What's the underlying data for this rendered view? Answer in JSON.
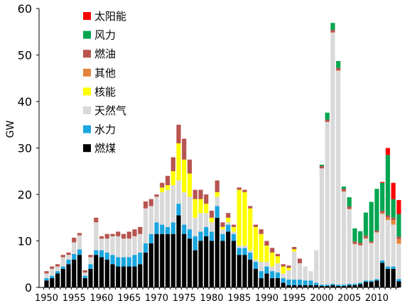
{
  "chart_data": {
    "type": "bar",
    "stacked": true,
    "title": "",
    "xlabel": "",
    "ylabel": "GW",
    "ylim": [
      0,
      60
    ],
    "yticks": [
      0,
      10,
      20,
      30,
      40,
      50,
      60
    ],
    "xticks": [
      1950,
      1955,
      1960,
      1965,
      1970,
      1975,
      1980,
      1985,
      1990,
      1995,
      2000,
      2005,
      2010
    ],
    "legend_position": "top-left",
    "grid": false,
    "x": [
      1950,
      1951,
      1952,
      1953,
      1954,
      1955,
      1956,
      1957,
      1958,
      1959,
      1960,
      1961,
      1962,
      1963,
      1964,
      1965,
      1966,
      1967,
      1968,
      1969,
      1970,
      1971,
      1972,
      1973,
      1974,
      1975,
      1976,
      1977,
      1978,
      1979,
      1980,
      1981,
      1982,
      1983,
      1984,
      1985,
      1986,
      1987,
      1988,
      1989,
      1990,
      1991,
      1992,
      1993,
      1994,
      1995,
      1996,
      1997,
      1998,
      1999,
      2000,
      2001,
      2002,
      2003,
      2004,
      2005,
      2006,
      2007,
      2008,
      2009,
      2010,
      2011,
      2012,
      2013,
      2014
    ],
    "series": [
      {
        "name": "燃煤",
        "color": "#000000",
        "values": [
          1.5,
          2,
          3,
          4,
          5,
          6,
          7,
          2,
          4,
          7,
          6.5,
          6,
          5,
          4.5,
          4.5,
          4.5,
          4.5,
          5,
          7.5,
          9.5,
          11.5,
          11.5,
          11.5,
          11.5,
          15.5,
          11.5,
          10.5,
          8,
          10,
          11,
          10,
          15,
          10,
          12,
          10,
          7,
          7,
          6,
          4,
          2,
          3,
          2,
          2,
          1,
          0.5,
          0.5,
          0.5,
          0.5,
          0.5,
          0.5,
          0.3,
          0.3,
          0.5,
          0.3,
          0.3,
          0.5,
          0.5,
          0.7,
          1.2,
          1.2,
          1.5,
          5.3,
          4,
          4,
          1.3
        ]
      },
      {
        "name": "水力",
        "color": "#1aa6e0",
        "values": [
          0.5,
          0.5,
          0.5,
          0.5,
          1,
          1.2,
          1.2,
          0.5,
          1,
          1,
          1.5,
          1.5,
          2,
          2,
          2,
          2,
          2.5,
          2.5,
          2,
          2,
          2.5,
          2,
          1.5,
          2.5,
          2.5,
          2,
          2,
          3,
          2,
          2,
          2,
          2.5,
          1.5,
          1.5,
          1.5,
          1.5,
          1.5,
          1.5,
          1.5,
          1.5,
          1.5,
          1.5,
          1.2,
          1,
          1.2,
          1.2,
          1.2,
          1,
          1,
          0.5,
          0.3,
          0.3,
          0.3,
          0.3,
          0.3,
          0.3,
          0.3,
          0.3,
          0.3,
          0.3,
          0.3,
          0.5,
          0.5,
          0.5,
          0.5
        ]
      },
      {
        "name": "天然气",
        "color": "#d9d9d9",
        "values": [
          1,
          1.5,
          1,
          2,
          1,
          2.5,
          3,
          0.7,
          1.5,
          6,
          2.5,
          3,
          4,
          4.5,
          4,
          4,
          4,
          4,
          7.5,
          6,
          5.5,
          7,
          8,
          8,
          5,
          7,
          7,
          4,
          4,
          3,
          2,
          2,
          1,
          0.5,
          0.5,
          0.5,
          0.5,
          0.5,
          0.5,
          2,
          1,
          1,
          2,
          1,
          2,
          6,
          3.5,
          3,
          2,
          7,
          25,
          35,
          54,
          46,
          20,
          16,
          8.5,
          8,
          9,
          8,
          10,
          10,
          10,
          9,
          7.6
        ]
      },
      {
        "name": "核能",
        "color": "#ffff00",
        "values": [
          0,
          0,
          0,
          0,
          0,
          0,
          0,
          0,
          0,
          0,
          0,
          0,
          0,
          0,
          0,
          0,
          0,
          0,
          0,
          0,
          0,
          1,
          1,
          3,
          8,
          7,
          5,
          4,
          3,
          2,
          1,
          1,
          0.5,
          1,
          1,
          12,
          11.5,
          9,
          7,
          6,
          3.5,
          3,
          1.5,
          1.5,
          0.5,
          0.5,
          0,
          0,
          0,
          0,
          0,
          0,
          0,
          0,
          0,
          0,
          0,
          0,
          0,
          0,
          0,
          0,
          0,
          0,
          0
        ]
      },
      {
        "name": "其他",
        "color": "#e6853a",
        "values": [
          0,
          0,
          0,
          0,
          0,
          0,
          0,
          0,
          0,
          0,
          0,
          0,
          0,
          0,
          0,
          0,
          0,
          0,
          0,
          0,
          0,
          0,
          0,
          0,
          0,
          0,
          0,
          0,
          0,
          0,
          0,
          0,
          0,
          0,
          0,
          0,
          0,
          0,
          0,
          0,
          0,
          0,
          0,
          0,
          0,
          0,
          0,
          0,
          0,
          0,
          0,
          0,
          0.1,
          0.1,
          0.1,
          0.1,
          0.1,
          0.1,
          0.1,
          0.1,
          0.1,
          0.2,
          0.5,
          1,
          1
        ]
      },
      {
        "name": "燃油",
        "color": "#b85450",
        "values": [
          0.5,
          0.5,
          0.5,
          0.5,
          0.5,
          1,
          0.5,
          0.5,
          0.5,
          1,
          0.5,
          1,
          0.5,
          1,
          1,
          1.5,
          1.5,
          1.5,
          1.5,
          1.5,
          0.5,
          1,
          2,
          3,
          4,
          4.5,
          3,
          2,
          2,
          2,
          1.5,
          2.5,
          1,
          1,
          0.5,
          0.5,
          0.5,
          0.5,
          0.5,
          1,
          1,
          1,
          0.5,
          0.5,
          0.5,
          0.5,
          1,
          0,
          0,
          0,
          0.5,
          0.5,
          0.5,
          0.5,
          0.5,
          0.5,
          0.5,
          0.5,
          0.5,
          0.3,
          0.3,
          0.5,
          0.5,
          0.5,
          0.5
        ]
      },
      {
        "name": "风力",
        "color": "#00a550",
        "values": [
          0,
          0,
          0,
          0,
          0,
          0,
          0,
          0,
          0,
          0,
          0,
          0,
          0,
          0,
          0,
          0,
          0,
          0,
          0,
          0,
          0,
          0,
          0,
          0,
          0,
          0,
          0,
          0,
          0,
          0,
          0,
          0,
          0,
          0,
          0,
          0,
          0,
          0,
          0,
          0,
          0,
          0,
          0,
          0,
          0,
          0,
          0,
          0,
          0,
          0,
          0.3,
          1.5,
          1.5,
          1.5,
          0.5,
          2,
          2.8,
          2.5,
          5,
          8.5,
          9,
          6,
          13,
          4,
          4.9
        ]
      },
      {
        "name": "太阳能",
        "color": "#ff0000",
        "values": [
          0,
          0,
          0,
          0,
          0,
          0,
          0,
          0,
          0,
          0,
          0,
          0,
          0,
          0,
          0,
          0,
          0,
          0,
          0,
          0,
          0,
          0,
          0,
          0,
          0,
          0,
          0,
          0,
          0,
          0,
          0,
          0,
          0,
          0,
          0,
          0,
          0,
          0,
          0,
          0,
          0,
          0,
          0,
          0,
          0,
          0,
          0,
          0,
          0,
          0,
          0,
          0,
          0,
          0,
          0,
          0,
          0,
          0,
          0,
          0,
          0,
          0.2,
          1.5,
          3.5,
          3
        ]
      }
    ]
  }
}
